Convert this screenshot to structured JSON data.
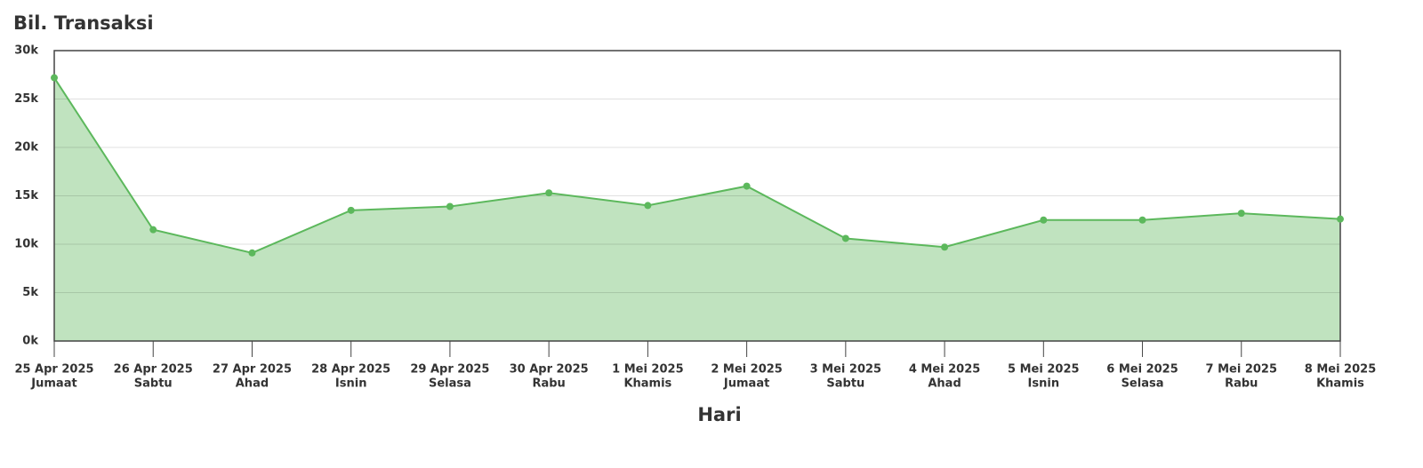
{
  "chart_data": {
    "type": "area",
    "title": "Bil. Transaksi",
    "x_label": "Hari",
    "categories": [
      "25 Apr 2025",
      "26 Apr 2025",
      "27 Apr 2025",
      "28 Apr 2025",
      "29 Apr 2025",
      "30 Apr 2025",
      "1 Mei 2025",
      "2 Mei 2025",
      "3 Mei 2025",
      "4 Mei 2025",
      "5 Mei 2025",
      "6 Mei 2025",
      "7 Mei 2025",
      "8 Mei 2025"
    ],
    "category_days": [
      "Jumaat",
      "Sabtu",
      "Ahad",
      "Isnin",
      "Selasa",
      "Rabu",
      "Khamis",
      "Jumaat",
      "Sabtu",
      "Ahad",
      "Isnin",
      "Selasa",
      "Rabu",
      "Khamis"
    ],
    "values": [
      27200,
      11500,
      9100,
      13500,
      13900,
      15300,
      14000,
      16000,
      10600,
      9700,
      12500,
      12500,
      13200,
      12600
    ],
    "color": "#5cb85c",
    "fill_color": "#c0e3bf",
    "ylim": [
      0,
      30000
    ],
    "yticks": [
      {
        "value": 0,
        "label": "0k"
      },
      {
        "value": 5000,
        "label": "5k"
      },
      {
        "value": 10000,
        "label": "10k"
      },
      {
        "value": 15000,
        "label": "15k"
      },
      {
        "value": 20000,
        "label": "20k"
      },
      {
        "value": 25000,
        "label": "25k"
      },
      {
        "value": 30000,
        "label": "30k"
      }
    ],
    "grid": true
  }
}
